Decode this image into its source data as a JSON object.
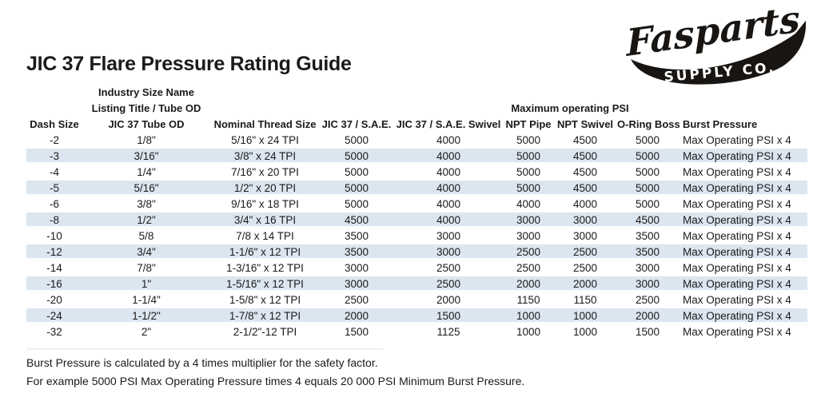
{
  "page": {
    "title": "JIC 37 Flare Pressure Rating Guide"
  },
  "logo": {
    "brand": "Fasparts",
    "subbrand": "SUPPLY CO."
  },
  "table": {
    "group_headers": {
      "industry_size_name": "Industry Size Name",
      "listing_title": "Listing Title / Tube OD",
      "max_psi": "Maximum operating PSI"
    },
    "columns": [
      "Dash Size",
      "JIC 37 Tube OD",
      "Nominal Thread Size",
      "JIC 37 / S.A.E.",
      "JIC 37 / S.A.E. Swivel",
      "NPT Pipe",
      "NPT Swivel",
      "O-Ring Boss",
      "Burst Pressure"
    ],
    "rows": [
      [
        "-2",
        "1/8\"",
        "5/16\" x 24 TPI",
        "5000",
        "4000",
        "5000",
        "4500",
        "5000",
        "Max Operating PSI x 4"
      ],
      [
        "-3",
        "3/16\"",
        "3/8\" x 24 TPI",
        "5000",
        "4000",
        "5000",
        "4500",
        "5000",
        "Max Operating PSI x 4"
      ],
      [
        "-4",
        "1/4\"",
        "7/16\" x 20 TPI",
        "5000",
        "4000",
        "5000",
        "4500",
        "5000",
        "Max Operating PSI x 4"
      ],
      [
        "-5",
        "5/16\"",
        "1/2\" x 20 TPI",
        "5000",
        "4000",
        "5000",
        "4500",
        "5000",
        "Max Operating PSI x 4"
      ],
      [
        "-6",
        "3/8\"",
        "9/16\" x 18 TPI",
        "5000",
        "4000",
        "4000",
        "4000",
        "5000",
        "Max Operating PSI x 4"
      ],
      [
        "-8",
        "1/2\"",
        "3/4\" x 16 TPI",
        "4500",
        "4000",
        "3000",
        "3000",
        "4500",
        "Max Operating PSI x 4"
      ],
      [
        "-10",
        "5/8",
        "7/8 x 14 TPI",
        "3500",
        "3000",
        "3000",
        "3000",
        "3500",
        "Max Operating PSI x 4"
      ],
      [
        "-12",
        "3/4\"",
        "1-1/6\" x 12 TPI",
        "3500",
        "3000",
        "2500",
        "2500",
        "3500",
        "Max Operating PSI x 4"
      ],
      [
        "-14",
        "7/8\"",
        "1-3/16\" x 12 TPI",
        "3000",
        "2500",
        "2500",
        "2500",
        "3000",
        "Max Operating PSI x 4"
      ],
      [
        "-16",
        "1\"",
        "1-5/16\" x 12 TPI",
        "3000",
        "2500",
        "2000",
        "2000",
        "3000",
        "Max Operating PSI x 4"
      ],
      [
        "-20",
        "1-1/4\"",
        "1-5/8\" x 12 TPI",
        "2500",
        "2000",
        "1150",
        "1150",
        "2500",
        "Max Operating PSI x 4"
      ],
      [
        "-24",
        "1-1/2\"",
        "1-7/8\" x 12 TPI",
        "2000",
        "1500",
        "1000",
        "1000",
        "2000",
        "Max Operating PSI x 4"
      ],
      [
        "-32",
        "2\"",
        "2-1/2\"-12 TPI",
        "1500",
        "1125",
        "1000",
        "1000",
        "1500",
        "Max Operating PSI x 4"
      ]
    ]
  },
  "notes": {
    "line1": "Burst Pressure is calculated by a 4 times multiplier for the safety factor.",
    "line2": "For example 5000 PSI Max Operating Pressure times 4 equals 20 000 PSI Minimum Burst Pressure."
  },
  "colors": {
    "row_shade": "#dce6f1",
    "text": "#1a1a1a",
    "logo_ink": "#181512"
  }
}
